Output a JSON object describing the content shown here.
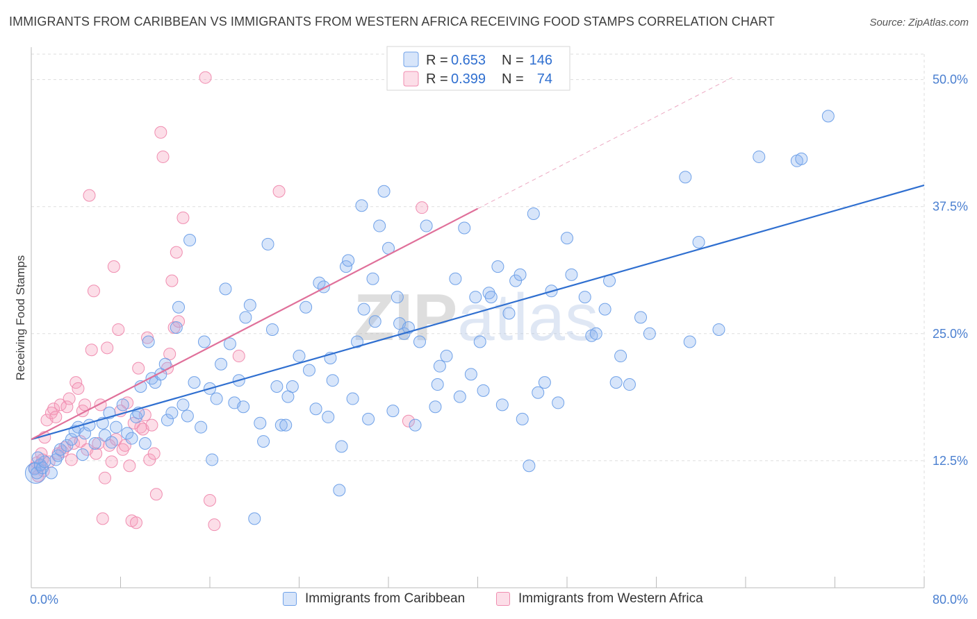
{
  "title": "IMMIGRANTS FROM CARIBBEAN VS IMMIGRANTS FROM WESTERN AFRICA RECEIVING FOOD STAMPS CORRELATION CHART",
  "source": "Source: ZipAtlas.com",
  "watermark": "ZIPatlas",
  "legend_top": {
    "r_label": "R =",
    "n_label": "N =",
    "rows": [
      {
        "r": "0.653",
        "n": "146"
      },
      {
        "r": "0.399",
        "n": "74"
      }
    ]
  },
  "legend_bottom": [
    "Immigrants from Caribbean",
    "Immigrants from Western Africa"
  ],
  "colors": {
    "blue": "#6fa1e8",
    "blue_fill": "rgba(140,180,240,0.35)",
    "blue_line": "#2f6fd0",
    "pink": "#f08db0",
    "pink_fill": "rgba(245,160,190,0.35)",
    "pink_line": "#e0709a",
    "axis_label": "#4a7fd0",
    "grid": "#dddddd"
  },
  "chart_data": {
    "type": "scatter",
    "title": "IMMIGRANTS FROM CARIBBEAN VS IMMIGRANTS FROM WESTERN AFRICA RECEIVING FOOD STAMPS CORRELATION CHART",
    "xlabel": "",
    "ylabel": "Receiving Food Stamps",
    "xlim": [
      0,
      80
    ],
    "ylim": [
      0,
      52.5
    ],
    "x_tick_labels": [
      "0.0%",
      "80.0%"
    ],
    "y_ticks": [
      12.5,
      25.0,
      37.5,
      50.0
    ],
    "y_tick_labels": [
      "12.5%",
      "25.0%",
      "37.5%",
      "50.0%"
    ],
    "grid": true,
    "series": [
      {
        "name": "Immigrants from Caribbean",
        "r": 0.653,
        "n": 146,
        "trend": {
          "x0": 0,
          "y0": 14.6,
          "x1": 80,
          "y1": 39.6
        },
        "points": [
          [
            0.3,
            11.7
          ],
          [
            0.5,
            11.3
          ],
          [
            0.8,
            12.1
          ],
          [
            1.0,
            11.8
          ],
          [
            1.2,
            12.4
          ],
          [
            0.6,
            12.8
          ],
          [
            1.8,
            11.3
          ],
          [
            2.2,
            12.6
          ],
          [
            2.4,
            13.0
          ],
          [
            2.6,
            13.6
          ],
          [
            3.2,
            14.0
          ],
          [
            3.6,
            14.6
          ],
          [
            3.9,
            15.4
          ],
          [
            4.2,
            15.8
          ],
          [
            4.6,
            13.1
          ],
          [
            4.8,
            15.2
          ],
          [
            5.2,
            16.0
          ],
          [
            5.7,
            14.2
          ],
          [
            6.4,
            16.2
          ],
          [
            6.6,
            15.0
          ],
          [
            7.0,
            17.2
          ],
          [
            7.2,
            14.3
          ],
          [
            7.6,
            15.8
          ],
          [
            8.2,
            18.0
          ],
          [
            8.6,
            15.2
          ],
          [
            9.0,
            14.7
          ],
          [
            9.4,
            16.8
          ],
          [
            9.6,
            17.2
          ],
          [
            9.8,
            19.8
          ],
          [
            10.2,
            14.2
          ],
          [
            10.5,
            24.2
          ],
          [
            10.8,
            20.6
          ],
          [
            11.1,
            20.2
          ],
          [
            11.6,
            21.0
          ],
          [
            12.0,
            22.0
          ],
          [
            12.2,
            16.5
          ],
          [
            12.6,
            17.2
          ],
          [
            13.0,
            25.6
          ],
          [
            13.2,
            27.6
          ],
          [
            13.6,
            18.0
          ],
          [
            14.0,
            16.9
          ],
          [
            14.2,
            34.2
          ],
          [
            14.6,
            20.2
          ],
          [
            15.2,
            15.8
          ],
          [
            15.5,
            24.2
          ],
          [
            16.0,
            19.6
          ],
          [
            16.2,
            12.6
          ],
          [
            16.6,
            18.6
          ],
          [
            17.0,
            22.0
          ],
          [
            17.4,
            29.4
          ],
          [
            17.8,
            24.0
          ],
          [
            18.2,
            18.2
          ],
          [
            18.6,
            20.4
          ],
          [
            19.0,
            17.8
          ],
          [
            19.2,
            26.6
          ],
          [
            19.6,
            27.8
          ],
          [
            20.0,
            6.8
          ],
          [
            20.5,
            16.2
          ],
          [
            20.8,
            14.4
          ],
          [
            21.2,
            33.8
          ],
          [
            21.6,
            25.4
          ],
          [
            22.0,
            19.8
          ],
          [
            22.4,
            16.0
          ],
          [
            22.8,
            16.0
          ],
          [
            23.0,
            18.8
          ],
          [
            23.4,
            19.8
          ],
          [
            24.0,
            22.8
          ],
          [
            24.6,
            27.6
          ],
          [
            24.9,
            21.4
          ],
          [
            25.5,
            17.6
          ],
          [
            25.8,
            30.0
          ],
          [
            26.2,
            29.6
          ],
          [
            26.6,
            16.8
          ],
          [
            26.8,
            22.6
          ],
          [
            27.0,
            20.4
          ],
          [
            27.6,
            9.6
          ],
          [
            27.8,
            13.9
          ],
          [
            28.2,
            31.6
          ],
          [
            28.4,
            32.2
          ],
          [
            28.8,
            18.6
          ],
          [
            29.2,
            24.2
          ],
          [
            29.6,
            37.6
          ],
          [
            29.8,
            27.4
          ],
          [
            30.2,
            16.6
          ],
          [
            30.6,
            30.4
          ],
          [
            30.8,
            26.2
          ],
          [
            31.2,
            35.6
          ],
          [
            31.6,
            39.0
          ],
          [
            32.0,
            33.4
          ],
          [
            32.4,
            17.4
          ],
          [
            32.8,
            28.6
          ],
          [
            33.0,
            26.0
          ],
          [
            33.4,
            25.0
          ],
          [
            33.8,
            25.6
          ],
          [
            34.4,
            16.0
          ],
          [
            34.8,
            24.2
          ],
          [
            35.4,
            35.6
          ],
          [
            36.2,
            17.8
          ],
          [
            36.4,
            20.0
          ],
          [
            36.6,
            21.8
          ],
          [
            37.2,
            22.8
          ],
          [
            38.0,
            30.4
          ],
          [
            38.4,
            18.8
          ],
          [
            38.8,
            35.4
          ],
          [
            39.4,
            21.0
          ],
          [
            39.8,
            28.6
          ],
          [
            40.2,
            24.2
          ],
          [
            40.5,
            19.4
          ],
          [
            41.0,
            29.0
          ],
          [
            41.2,
            28.6
          ],
          [
            41.8,
            31.6
          ],
          [
            42.2,
            18.0
          ],
          [
            42.8,
            27.0
          ],
          [
            43.4,
            30.2
          ],
          [
            43.8,
            30.8
          ],
          [
            44.0,
            16.6
          ],
          [
            44.6,
            12.0
          ],
          [
            45.0,
            36.8
          ],
          [
            45.4,
            19.2
          ],
          [
            46.0,
            20.2
          ],
          [
            46.6,
            29.2
          ],
          [
            47.2,
            18.2
          ],
          [
            48.0,
            34.4
          ],
          [
            48.4,
            30.8
          ],
          [
            49.6,
            28.6
          ],
          [
            50.2,
            24.8
          ],
          [
            50.6,
            25.0
          ],
          [
            51.4,
            27.4
          ],
          [
            51.8,
            30.2
          ],
          [
            52.4,
            20.2
          ],
          [
            52.8,
            22.8
          ],
          [
            53.6,
            20.0
          ],
          [
            54.6,
            26.6
          ],
          [
            55.4,
            25.0
          ],
          [
            58.6,
            40.4
          ],
          [
            59.0,
            24.2
          ],
          [
            59.8,
            34.0
          ],
          [
            61.6,
            25.4
          ],
          [
            65.2,
            42.4
          ],
          [
            68.6,
            42.0
          ],
          [
            69.0,
            42.2
          ],
          [
            71.4,
            46.4
          ]
        ]
      },
      {
        "name": "Immigrants from Western Africa",
        "r": 0.399,
        "n": 74,
        "trend": {
          "x0": 0,
          "y0": 14.6,
          "x1": 40,
          "y1": 37.3
        },
        "trend_ext": {
          "x0": 40,
          "y0": 37.3,
          "x1": 62.8,
          "y1": 50.2
        },
        "points": [
          [
            0.3,
            11.8
          ],
          [
            0.5,
            12.3
          ],
          [
            0.8,
            12.0
          ],
          [
            0.9,
            13.2
          ],
          [
            1.1,
            11.5
          ],
          [
            1.2,
            14.8
          ],
          [
            1.4,
            16.5
          ],
          [
            1.6,
            12.4
          ],
          [
            1.8,
            17.2
          ],
          [
            2.0,
            17.6
          ],
          [
            2.2,
            16.8
          ],
          [
            2.4,
            13.2
          ],
          [
            2.6,
            18.0
          ],
          [
            3.0,
            13.8
          ],
          [
            3.2,
            17.8
          ],
          [
            3.4,
            18.6
          ],
          [
            3.6,
            12.6
          ],
          [
            3.8,
            14.2
          ],
          [
            4.0,
            20.2
          ],
          [
            4.2,
            19.6
          ],
          [
            4.4,
            14.4
          ],
          [
            4.6,
            17.4
          ],
          [
            4.8,
            18.0
          ],
          [
            5.0,
            13.6
          ],
          [
            5.2,
            38.6
          ],
          [
            5.4,
            23.4
          ],
          [
            5.6,
            29.2
          ],
          [
            5.8,
            13.2
          ],
          [
            6.0,
            14.2
          ],
          [
            6.2,
            18.0
          ],
          [
            6.4,
            6.8
          ],
          [
            6.6,
            10.8
          ],
          [
            6.8,
            23.6
          ],
          [
            7.0,
            14.0
          ],
          [
            7.2,
            12.4
          ],
          [
            7.4,
            31.6
          ],
          [
            7.6,
            14.6
          ],
          [
            7.8,
            25.4
          ],
          [
            8.0,
            17.4
          ],
          [
            8.2,
            13.6
          ],
          [
            8.4,
            14.0
          ],
          [
            8.6,
            18.2
          ],
          [
            8.8,
            12.0
          ],
          [
            9.0,
            6.6
          ],
          [
            9.2,
            16.2
          ],
          [
            9.4,
            6.4
          ],
          [
            9.6,
            21.6
          ],
          [
            9.8,
            15.8
          ],
          [
            10.0,
            15.6
          ],
          [
            10.2,
            17.0
          ],
          [
            10.4,
            24.6
          ],
          [
            10.6,
            12.6
          ],
          [
            10.8,
            16.0
          ],
          [
            11.0,
            13.2
          ],
          [
            11.2,
            9.2
          ],
          [
            11.6,
            44.8
          ],
          [
            11.8,
            42.4
          ],
          [
            12.2,
            21.6
          ],
          [
            12.4,
            23.0
          ],
          [
            12.6,
            30.2
          ],
          [
            12.8,
            25.6
          ],
          [
            13.0,
            33.0
          ],
          [
            13.2,
            26.2
          ],
          [
            13.6,
            36.4
          ],
          [
            15.6,
            50.2
          ],
          [
            16.0,
            8.6
          ],
          [
            16.4,
            6.2
          ],
          [
            18.6,
            22.8
          ],
          [
            22.2,
            39.0
          ],
          [
            33.8,
            16.4
          ],
          [
            35.0,
            37.4
          ],
          [
            0.6,
            11.0
          ],
          [
            1.0,
            12.6
          ],
          [
            2.8,
            13.4
          ]
        ]
      }
    ]
  }
}
